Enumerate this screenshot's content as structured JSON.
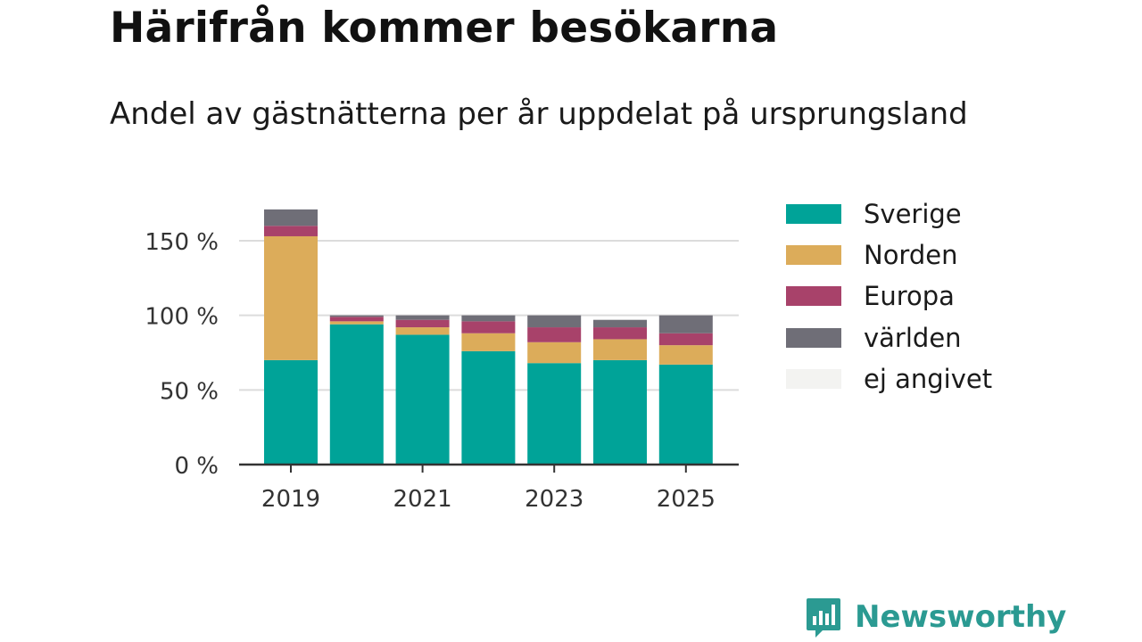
{
  "title": "Härifrån kommer besökarna",
  "subtitle": "Andel av gästnätterna per år uppdelat på ursprungsland",
  "brand": {
    "name": "Newsworthy",
    "icon": "bar-chart-speech-bubble-icon"
  },
  "chart_data": {
    "type": "bar",
    "stacked": true,
    "x": [
      2019,
      2020,
      2021,
      2022,
      2023,
      2024,
      2025
    ],
    "x_tick_labels": [
      "2019",
      "2021",
      "2023",
      "2025"
    ],
    "y_tick_labels": [
      "0 %",
      "50 %",
      "100 %",
      "150 %"
    ],
    "y_ticks": [
      0,
      50,
      100,
      150
    ],
    "ylim": [
      0,
      175
    ],
    "grid": true,
    "legend_position": "right",
    "series": [
      {
        "name": "Sverige",
        "color": "#00a398",
        "values": [
          70,
          94,
          87,
          76,
          68,
          70,
          67
        ]
      },
      {
        "name": "Norden",
        "color": "#dcac5a",
        "values": [
          83,
          2,
          5,
          12,
          14,
          14,
          13
        ]
      },
      {
        "name": "Europa",
        "color": "#a8426a",
        "values": [
          7,
          3,
          5,
          8,
          10,
          8,
          8
        ]
      },
      {
        "name": "världen",
        "color": "#6f6e77",
        "values": [
          11,
          1,
          3,
          4,
          8,
          5,
          12
        ]
      },
      {
        "name": "ej angivet",
        "color": "#f3f3f1",
        "values": [
          0,
          0,
          0,
          0,
          0,
          0,
          0
        ]
      }
    ]
  }
}
